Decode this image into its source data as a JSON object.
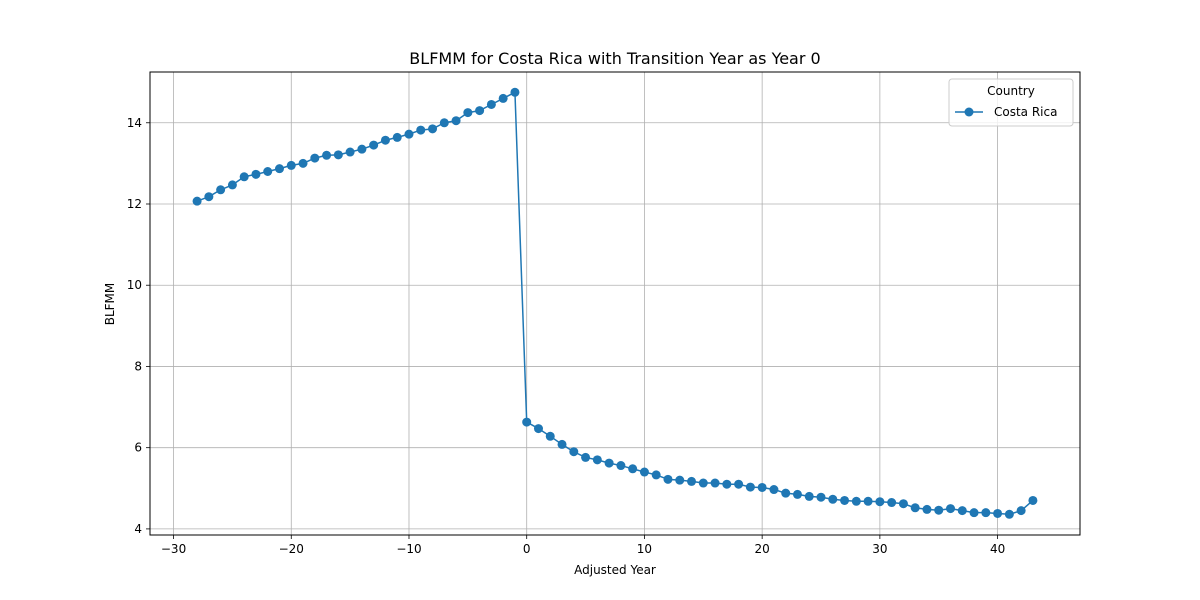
{
  "chart_data": {
    "type": "line",
    "title": "BLFMM for Costa Rica with Transition Year as Year 0",
    "xlabel": "Adjusted Year",
    "ylabel": "BLFMM",
    "xlim": [
      -32,
      47
    ],
    "ylim": [
      3.85,
      15.25
    ],
    "xticks": [
      -30,
      -20,
      -10,
      0,
      10,
      20,
      30,
      40
    ],
    "yticks": [
      4,
      6,
      8,
      10,
      12,
      14
    ],
    "grid": true,
    "legend": {
      "title": "Country",
      "placement": "top-right"
    },
    "colors": {
      "series": "#1f77b4",
      "grid": "#b0b0b0"
    },
    "series": [
      {
        "name": "Costa Rica",
        "marker": "circle",
        "x": [
          -28,
          -27,
          -26,
          -25,
          -24,
          -23,
          -22,
          -21,
          -20,
          -19,
          -18,
          -17,
          -16,
          -15,
          -14,
          -13,
          -12,
          -11,
          -10,
          -9,
          -8,
          -7,
          -6,
          -5,
          -4,
          -3,
          -2,
          -1,
          0,
          1,
          2,
          3,
          4,
          5,
          6,
          7,
          8,
          9,
          10,
          11,
          12,
          13,
          14,
          15,
          16,
          17,
          18,
          19,
          20,
          21,
          22,
          23,
          24,
          25,
          26,
          27,
          28,
          29,
          30,
          31,
          32,
          33,
          34,
          35,
          36,
          37,
          38,
          39,
          40,
          41,
          42,
          43
        ],
        "y": [
          12.07,
          12.18,
          12.35,
          12.47,
          12.67,
          12.73,
          12.8,
          12.87,
          12.95,
          13.0,
          13.13,
          13.2,
          13.21,
          13.28,
          13.35,
          13.45,
          13.57,
          13.64,
          13.72,
          13.82,
          13.85,
          14.0,
          14.05,
          14.25,
          14.3,
          14.45,
          14.6,
          14.75,
          6.63,
          6.47,
          6.28,
          6.08,
          5.9,
          5.76,
          5.7,
          5.62,
          5.56,
          5.48,
          5.4,
          5.33,
          5.22,
          5.2,
          5.17,
          5.13,
          5.13,
          5.1,
          5.1,
          5.03,
          5.02,
          4.97,
          4.88,
          4.85,
          4.8,
          4.78,
          4.73,
          4.7,
          4.68,
          4.68,
          4.67,
          4.65,
          4.62,
          4.52,
          4.48,
          4.46,
          4.5,
          4.45,
          4.4,
          4.4,
          4.38,
          4.36,
          4.45,
          4.7
        ]
      }
    ]
  }
}
